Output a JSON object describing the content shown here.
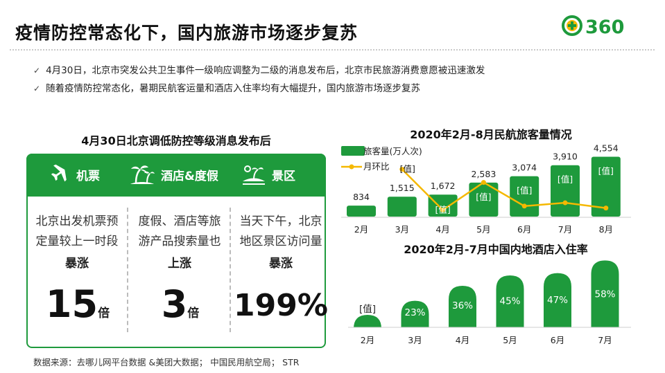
{
  "title": "疫情防控常态化下，国内旅游市场逐步复苏",
  "logo_text": "360",
  "bullets": [
    "4月30日，北京市突发公共卫生事件一级响应调整为二级的消息发布后，北京市民旅游消费意愿被迅速激发",
    "随着疫情防控常态化，暑期民航客运量和酒店入住率均有大幅提升，国内旅游市场逐步复苏"
  ],
  "left_panel": {
    "title": "4月30日北京调低防控等级消息发布后",
    "columns": [
      {
        "icon": "airplane-icon",
        "label": "机票",
        "line1": "北京出发机票预",
        "line2": "定量较上一时段",
        "emphasis": "暴涨",
        "number": "15",
        "unit": "倍"
      },
      {
        "icon": "palm-tree-icon",
        "label": "酒店&度假",
        "line1": "度假、酒店等旅",
        "line2": "游产品搜索量也",
        "emphasis": "上涨",
        "number": "3",
        "unit": "倍"
      },
      {
        "icon": "scenic-icon",
        "label": "景区",
        "line1": "当天下午，北京",
        "line2": "地区景区访问量",
        "emphasis": "暴涨",
        "number": "199%",
        "unit": ""
      }
    ]
  },
  "colors": {
    "green": "#1e9a3c",
    "yellow": "#f5b800",
    "gray": "#bbbbbb"
  },
  "chart_data": [
    {
      "type": "bar",
      "title": "2020年2月-8月民航旅客量情况",
      "categories": [
        "2月",
        "3月",
        "4月",
        "5月",
        "6月",
        "7月",
        "8月"
      ],
      "series": [
        {
          "name": "旅客量(万人次)",
          "type": "bar",
          "values": [
            834,
            1515,
            1672,
            2583,
            3074,
            3910,
            4554
          ],
          "labels": [
            "834",
            "1,515",
            "1,672",
            "2,583",
            "3,074",
            "3,910",
            "4,554"
          ]
        },
        {
          "name": "月环比",
          "type": "line",
          "labels": [
            "",
            "[值]",
            "[值]",
            "[值]",
            "[值]",
            "[值]",
            "[值]"
          ],
          "relative_values": [
            null,
            0.72,
            0.1,
            0.52,
            0.16,
            0.21,
            0.13
          ]
        }
      ],
      "ylim": [
        0,
        5000
      ],
      "legend": "top-left"
    },
    {
      "type": "bar",
      "title": "2020年2月-7月中国内地酒店入住率",
      "categories": [
        "2月",
        "3月",
        "4月",
        "5月",
        "6月",
        "7月"
      ],
      "values": [
        10,
        23,
        36,
        45,
        47,
        58
      ],
      "labels": [
        "[值]",
        "23%",
        "36%",
        "45%",
        "47%",
        "58%"
      ],
      "ylim": [
        0,
        60
      ]
    }
  ],
  "source": "数据来源：去哪儿网平台数据 &美团大数据； 中国民用航空局； STR"
}
